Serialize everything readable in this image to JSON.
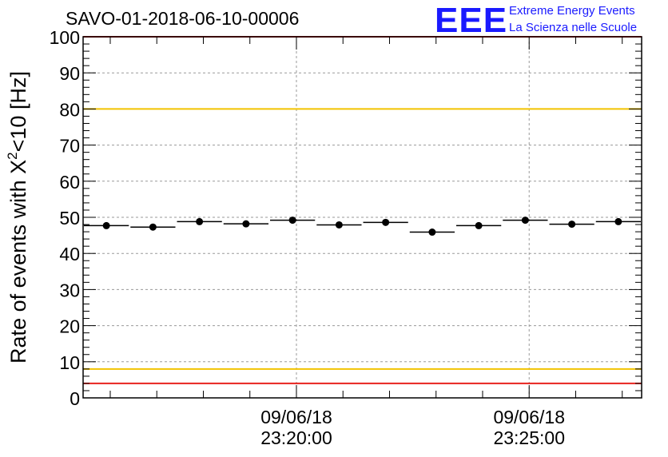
{
  "chart_data": {
    "type": "scatter",
    "title": "SAVO-01-2018-06-10-00006",
    "ylabel": {
      "base": "Rate of events with X",
      "sup": "2",
      "tail": "<10 [Hz]"
    },
    "ylim": [
      0,
      100
    ],
    "yticks": [
      0,
      10,
      20,
      30,
      40,
      50,
      60,
      70,
      80,
      90,
      100
    ],
    "xlim": [
      "2018-06-09 23:15:25",
      "2018-06-09 23:27:25"
    ],
    "xticks": [
      {
        "x": "2018-06-09 23:20:00",
        "date": "09/06/18",
        "time": "23:20:00"
      },
      {
        "x": "2018-06-09 23:25:00",
        "date": "09/06/18",
        "time": "23:25:00"
      }
    ],
    "grid": true,
    "bin_width_s": 60,
    "points": [
      {
        "x": "2018-06-09 23:15:55",
        "y": 47.7
      },
      {
        "x": "2018-06-09 23:16:55",
        "y": 47.3
      },
      {
        "x": "2018-06-09 23:17:55",
        "y": 48.8
      },
      {
        "x": "2018-06-09 23:18:55",
        "y": 48.2
      },
      {
        "x": "2018-06-09 23:19:55",
        "y": 49.2
      },
      {
        "x": "2018-06-09 23:20:55",
        "y": 47.9
      },
      {
        "x": "2018-06-09 23:21:55",
        "y": 48.6
      },
      {
        "x": "2018-06-09 23:22:55",
        "y": 45.9
      },
      {
        "x": "2018-06-09 23:23:55",
        "y": 47.7
      },
      {
        "x": "2018-06-09 23:24:55",
        "y": 49.2
      },
      {
        "x": "2018-06-09 23:25:55",
        "y": 48.1
      },
      {
        "x": "2018-06-09 23:26:55",
        "y": 48.8
      }
    ],
    "reference_lines": [
      {
        "y": 100,
        "color": "#e8231e"
      },
      {
        "y": 80,
        "color": "#f2c300"
      },
      {
        "y": 8,
        "color": "#f2c300"
      },
      {
        "y": 4,
        "color": "#e8231e"
      }
    ]
  },
  "logo": {
    "text": "EEE",
    "line1": "Extreme Energy Events",
    "line2": "La Scienza nelle Scuole",
    "color": "#1a1aff"
  }
}
